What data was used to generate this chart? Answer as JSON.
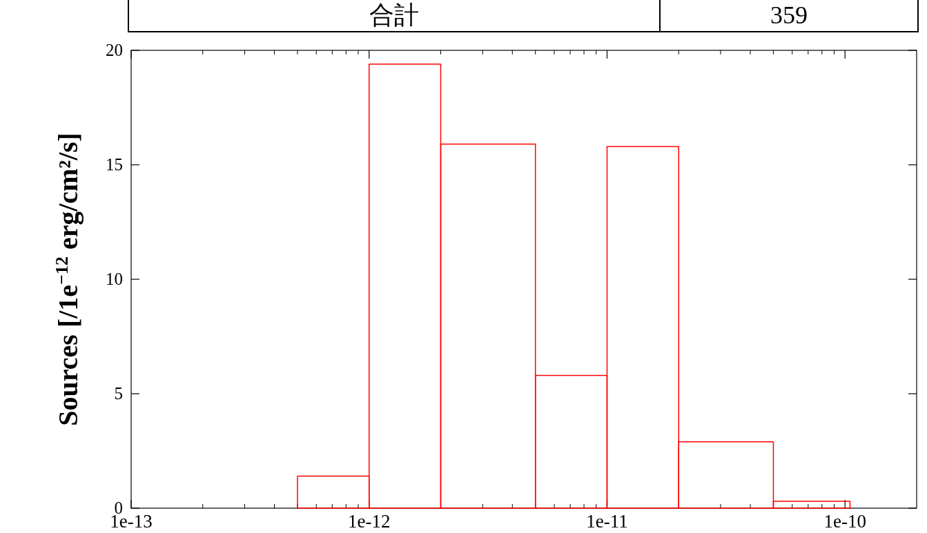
{
  "chart_data": {
    "type": "histogram",
    "ylabel": "Sources  [/1e$^{−12}$ erg/cm²/s]",
    "bins": [
      5e-13,
      1e-12,
      2e-12,
      5e-12,
      1e-11,
      2e-11,
      5e-11,
      1.05e-10
    ],
    "values": [
      1.4,
      19.4,
      15.9,
      5.8,
      15.8,
      2.9,
      0.3
    ],
    "color": "#ff0000",
    "log": "x",
    "xlim": [
      1e-13,
      2e-10
    ],
    "xticks": [
      {
        "value": 1e-13,
        "label": "1e-13"
      },
      {
        "value": 1e-12,
        "label": "1e-12"
      },
      {
        "value": 1e-11,
        "label": "1e-11"
      },
      {
        "value": 1e-10,
        "label": "1e-10"
      }
    ],
    "ylim": [
      0,
      20
    ],
    "yticks": [
      0,
      5,
      10,
      15,
      20
    ],
    "grid": false,
    "annotations": [
      "合計",
      "359"
    ]
  }
}
